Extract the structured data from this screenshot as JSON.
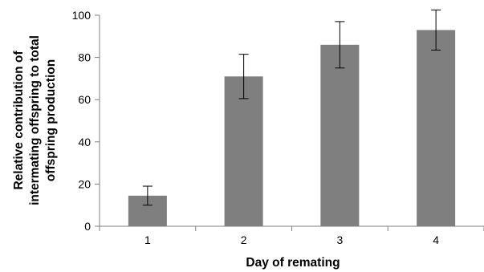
{
  "chart_data": {
    "type": "bar",
    "title": "",
    "xlabel": "Day of remating",
    "ylabel_lines": [
      "Relative contribution of",
      "intermating offspring to total",
      "offspring production"
    ],
    "categories": [
      "1",
      "2",
      "3",
      "4"
    ],
    "values": [
      14.5,
      71,
      86,
      93
    ],
    "error": [
      4.5,
      10.5,
      11,
      9.5
    ],
    "ylim": [
      0,
      100
    ],
    "yticks": [
      0,
      20,
      40,
      60,
      80,
      100
    ],
    "grid": false,
    "legend": "none",
    "colors": {
      "bar": "#7f7f7f",
      "axis": "#808080",
      "error_bar": "#000000"
    }
  }
}
